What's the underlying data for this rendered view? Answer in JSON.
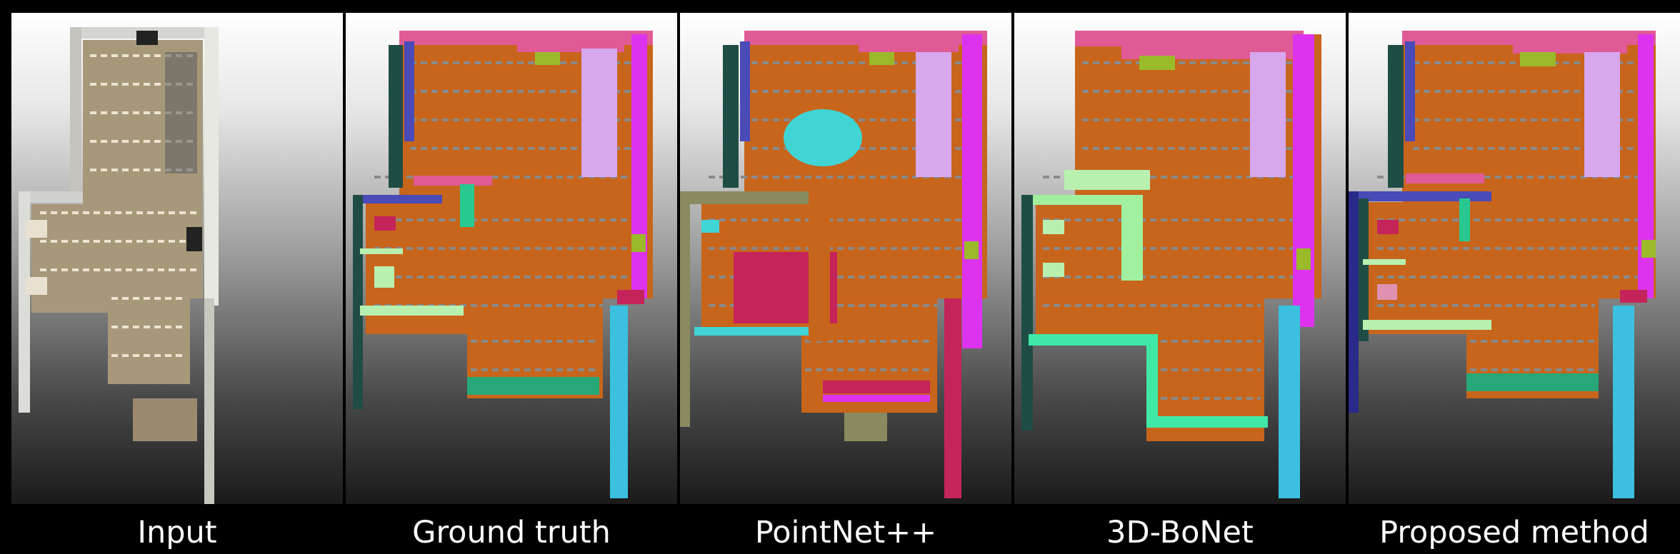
{
  "panels": [
    {
      "id": "input",
      "caption": "Input",
      "floor_color": "#b09a78"
    },
    {
      "id": "ground-truth",
      "caption": "Ground truth",
      "floor_color": "#c8651c"
    },
    {
      "id": "pointnet",
      "caption": "PointNet++",
      "floor_color": "#c8651c"
    },
    {
      "id": "bonet",
      "caption": "3D-BoNet",
      "floor_color": "#c8651c"
    },
    {
      "id": "proposed",
      "caption": "Proposed method",
      "floor_color": "#c8651c"
    }
  ],
  "colors": {
    "pink": "#e05a95",
    "magenta": "#dd33ee",
    "lavender": "#d8a8ee",
    "dark_teal": "#1f4d45",
    "cyan": "#3cc0e0",
    "lime": "#9aba2a",
    "mint": "#b8f0b0",
    "teal_green": "#28c890",
    "crimson": "#c4245a",
    "navy": "#4a4ab8",
    "aqua": "#40d4d4",
    "olive": "#8a8a60"
  }
}
